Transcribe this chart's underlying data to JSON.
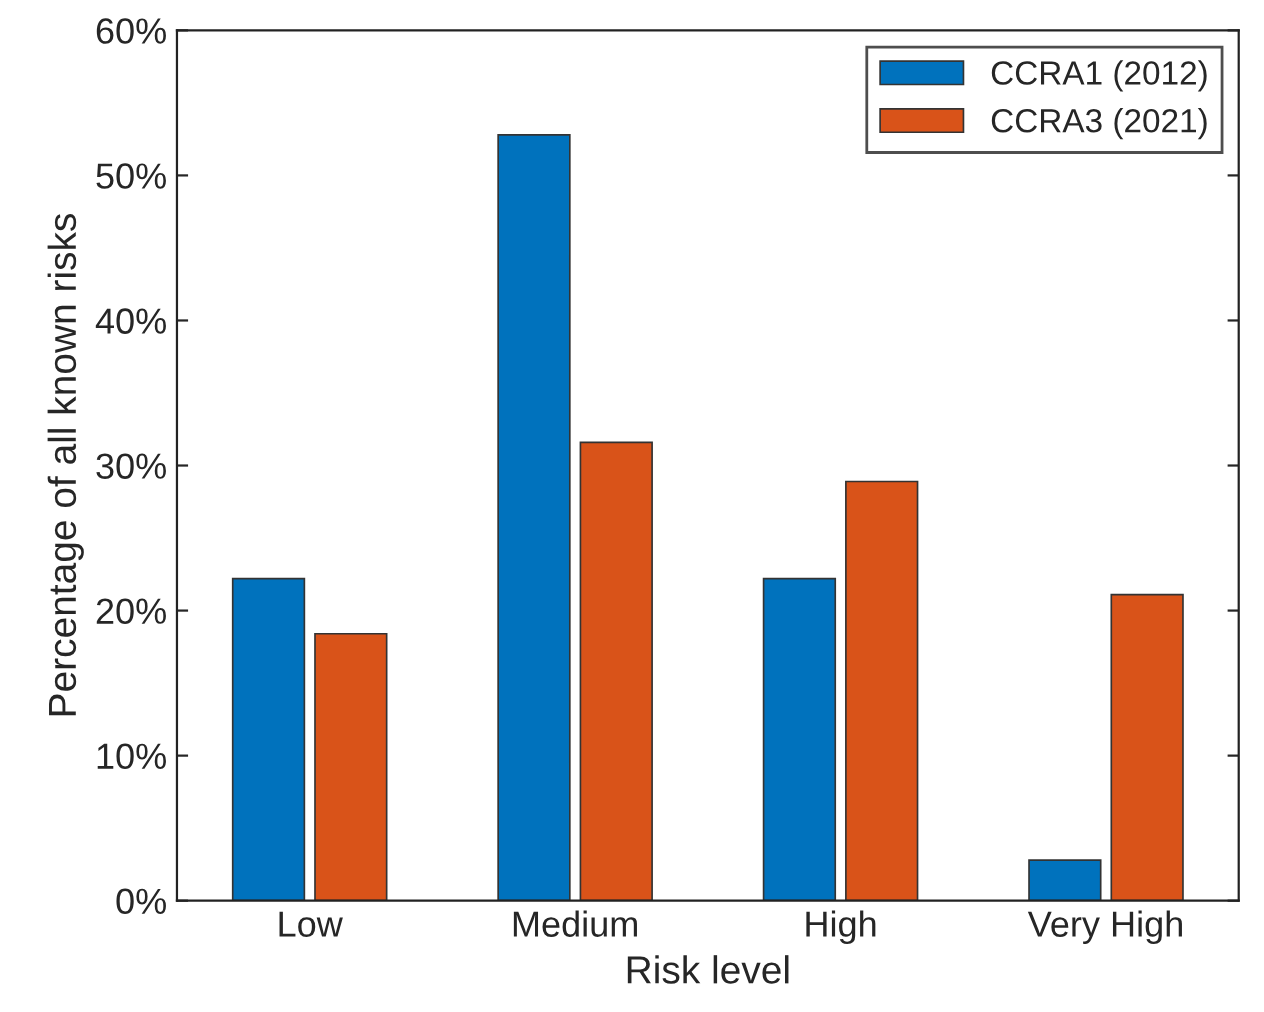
{
  "chart_data": {
    "type": "bar",
    "xlabel": "Risk level",
    "ylabel": "Percentage of all known risks",
    "categories": [
      "Low",
      "Medium",
      "High",
      "Very High"
    ],
    "series": [
      {
        "name": "CCRA1 (2012)",
        "color": "#0072bd",
        "values": [
          22.2,
          52.8,
          22.2,
          2.8
        ]
      },
      {
        "name": "CCRA3 (2021)",
        "color": "#d95319",
        "values": [
          18.4,
          31.6,
          28.9,
          21.1
        ]
      }
    ],
    "ylim": [
      0,
      60
    ],
    "yticks": [
      {
        "value": 0,
        "label": "0%"
      },
      {
        "value": 10,
        "label": "10%"
      },
      {
        "value": 20,
        "label": "20%"
      },
      {
        "value": 30,
        "label": "30%"
      },
      {
        "value": 40,
        "label": "40%"
      },
      {
        "value": 50,
        "label": "50%"
      },
      {
        "value": 60,
        "label": "60%"
      }
    ],
    "legend": "top right",
    "grid": false
  }
}
